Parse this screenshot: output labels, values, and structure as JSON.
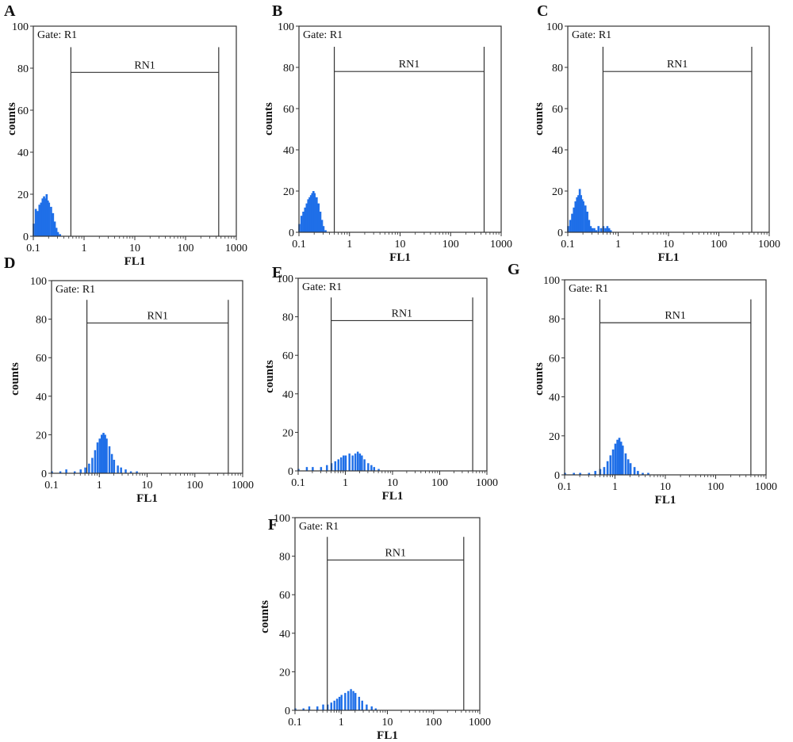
{
  "colors": {
    "histogram": "#1f6fe8",
    "frame": "#333333",
    "marker": "#333333"
  },
  "chart_data": [
    {
      "panel": "A",
      "type": "histogram",
      "title": "",
      "xlabel": "FL1",
      "ylabel": "counts",
      "x_scale": "log",
      "xlim": [
        0.1,
        1000
      ],
      "ylim": [
        0,
        100
      ],
      "x_ticks": [
        "0.1",
        "1",
        "10",
        "100",
        "1000"
      ],
      "y_ticks": [
        "0",
        "20",
        "40",
        "60",
        "80",
        "100"
      ],
      "gate": "Gate: R1",
      "marker": {
        "name": "RN1",
        "x_start": 0.55,
        "x_end": 450,
        "y": 78
      },
      "bins": [
        [
          0.1,
          6
        ],
        [
          0.11,
          13
        ],
        [
          0.12,
          12
        ],
        [
          0.13,
          15
        ],
        [
          0.14,
          16
        ],
        [
          0.15,
          18
        ],
        [
          0.16,
          19
        ],
        [
          0.17,
          18
        ],
        [
          0.18,
          20
        ],
        [
          0.19,
          17
        ],
        [
          0.2,
          16
        ],
        [
          0.22,
          14
        ],
        [
          0.24,
          11
        ],
        [
          0.26,
          7
        ],
        [
          0.28,
          4
        ],
        [
          0.3,
          2
        ],
        [
          0.33,
          1
        ]
      ]
    },
    {
      "panel": "B",
      "type": "histogram",
      "title": "",
      "xlabel": "FL1",
      "ylabel": "counts",
      "x_scale": "log",
      "xlim": [
        0.1,
        1000
      ],
      "ylim": [
        0,
        100
      ],
      "x_ticks": [
        "0.1",
        "1",
        "10",
        "100",
        "1000"
      ],
      "y_ticks": [
        "0",
        "20",
        "40",
        "60",
        "80",
        "100"
      ],
      "gate": "Gate: R1",
      "marker": {
        "name": "RN1",
        "x_start": 0.5,
        "x_end": 460,
        "y": 78
      },
      "bins": [
        [
          0.1,
          4
        ],
        [
          0.11,
          8
        ],
        [
          0.12,
          10
        ],
        [
          0.13,
          12
        ],
        [
          0.14,
          14
        ],
        [
          0.15,
          16
        ],
        [
          0.16,
          17
        ],
        [
          0.17,
          18
        ],
        [
          0.18,
          19
        ],
        [
          0.19,
          20
        ],
        [
          0.2,
          19
        ],
        [
          0.22,
          17
        ],
        [
          0.24,
          14
        ],
        [
          0.26,
          10
        ],
        [
          0.28,
          6
        ],
        [
          0.3,
          3
        ],
        [
          0.33,
          1
        ]
      ]
    },
    {
      "panel": "C",
      "type": "histogram",
      "title": "",
      "xlabel": "FL1",
      "ylabel": "counts",
      "x_scale": "log",
      "xlim": [
        0.1,
        1000
      ],
      "ylim": [
        0,
        100
      ],
      "x_ticks": [
        "0.1",
        "1",
        "10",
        "100",
        "1000"
      ],
      "y_ticks": [
        "0",
        "20",
        "40",
        "60",
        "80",
        "100"
      ],
      "gate": "Gate: R1",
      "marker": {
        "name": "RN1",
        "x_start": 0.5,
        "x_end": 450,
        "y": 78
      },
      "bins": [
        [
          0.1,
          3
        ],
        [
          0.11,
          6
        ],
        [
          0.12,
          9
        ],
        [
          0.13,
          12
        ],
        [
          0.14,
          15
        ],
        [
          0.15,
          17
        ],
        [
          0.16,
          18
        ],
        [
          0.17,
          21
        ],
        [
          0.18,
          18
        ],
        [
          0.19,
          16
        ],
        [
          0.2,
          15
        ],
        [
          0.22,
          13
        ],
        [
          0.24,
          10
        ],
        [
          0.26,
          6
        ],
        [
          0.28,
          3
        ],
        [
          0.3,
          2
        ],
        [
          0.33,
          2
        ],
        [
          0.36,
          1
        ],
        [
          0.4,
          3
        ],
        [
          0.45,
          2
        ],
        [
          0.5,
          3
        ],
        [
          0.55,
          2
        ],
        [
          0.6,
          3
        ],
        [
          0.65,
          2
        ],
        [
          0.7,
          1
        ]
      ]
    },
    {
      "panel": "D",
      "type": "histogram",
      "title": "",
      "xlabel": "FL1",
      "ylabel": "counts",
      "x_scale": "log",
      "xlim": [
        0.1,
        1000
      ],
      "ylim": [
        0,
        100
      ],
      "x_ticks": [
        "0.1",
        "1",
        "10",
        "100",
        "1000"
      ],
      "y_ticks": [
        "0",
        "20",
        "40",
        "60",
        "80",
        "100"
      ],
      "gate": "Gate: R1",
      "marker": {
        "name": "RN1",
        "x_start": 0.55,
        "x_end": 500,
        "y": 78
      },
      "bins": [
        [
          0.1,
          1
        ],
        [
          0.15,
          1
        ],
        [
          0.2,
          2
        ],
        [
          0.3,
          1
        ],
        [
          0.4,
          2
        ],
        [
          0.5,
          3
        ],
        [
          0.6,
          5
        ],
        [
          0.7,
          8
        ],
        [
          0.8,
          12
        ],
        [
          0.9,
          16
        ],
        [
          1.0,
          18
        ],
        [
          1.1,
          20
        ],
        [
          1.2,
          21
        ],
        [
          1.3,
          20
        ],
        [
          1.4,
          18
        ],
        [
          1.6,
          14
        ],
        [
          1.8,
          10
        ],
        [
          2.0,
          7
        ],
        [
          2.4,
          4
        ],
        [
          2.8,
          3
        ],
        [
          3.5,
          2
        ],
        [
          4.5,
          1
        ],
        [
          6.0,
          1
        ]
      ]
    },
    {
      "panel": "E",
      "type": "histogram",
      "title": "",
      "xlabel": "FL1",
      "ylabel": "counts",
      "x_scale": "log",
      "xlim": [
        0.1,
        1000
      ],
      "ylim": [
        0,
        100
      ],
      "x_ticks": [
        "0.1",
        "1",
        "10",
        "100",
        "1000"
      ],
      "y_ticks": [
        "0",
        "20",
        "40",
        "60",
        "80",
        "100"
      ],
      "gate": "Gate: R1",
      "marker": {
        "name": "RN1",
        "x_start": 0.5,
        "x_end": 500,
        "y": 78
      },
      "bins": [
        [
          0.1,
          1
        ],
        [
          0.15,
          2
        ],
        [
          0.2,
          2
        ],
        [
          0.3,
          2
        ],
        [
          0.4,
          3
        ],
        [
          0.5,
          4
        ],
        [
          0.6,
          5
        ],
        [
          0.7,
          6
        ],
        [
          0.8,
          7
        ],
        [
          0.9,
          8
        ],
        [
          1.0,
          8
        ],
        [
          1.2,
          9
        ],
        [
          1.4,
          8
        ],
        [
          1.6,
          9
        ],
        [
          1.8,
          10
        ],
        [
          2.0,
          9
        ],
        [
          2.2,
          8
        ],
        [
          2.5,
          6
        ],
        [
          3.0,
          4
        ],
        [
          3.5,
          3
        ],
        [
          4.0,
          2
        ],
        [
          5.0,
          1
        ]
      ]
    },
    {
      "panel": "G",
      "type": "histogram",
      "title": "",
      "xlabel": "FL1",
      "ylabel": "counts",
      "x_scale": "log",
      "xlim": [
        0.1,
        1000
      ],
      "ylim": [
        0,
        100
      ],
      "x_ticks": [
        "0.1",
        "1",
        "10",
        "100",
        "1000"
      ],
      "y_ticks": [
        "0",
        "20",
        "40",
        "60",
        "80",
        "100"
      ],
      "gate": "Gate: R1",
      "marker": {
        "name": "RN1",
        "x_start": 0.5,
        "x_end": 500,
        "y": 78
      },
      "bins": [
        [
          0.1,
          1
        ],
        [
          0.15,
          1
        ],
        [
          0.2,
          1
        ],
        [
          0.3,
          1
        ],
        [
          0.4,
          2
        ],
        [
          0.5,
          3
        ],
        [
          0.6,
          4
        ],
        [
          0.7,
          7
        ],
        [
          0.8,
          10
        ],
        [
          0.9,
          13
        ],
        [
          1.0,
          16
        ],
        [
          1.1,
          18
        ],
        [
          1.2,
          19
        ],
        [
          1.3,
          17
        ],
        [
          1.4,
          15
        ],
        [
          1.6,
          11
        ],
        [
          1.8,
          8
        ],
        [
          2.0,
          6
        ],
        [
          2.4,
          4
        ],
        [
          2.8,
          2
        ],
        [
          3.5,
          1
        ],
        [
          4.5,
          1
        ]
      ]
    },
    {
      "panel": "F",
      "type": "histogram",
      "title": "",
      "xlabel": "FL1",
      "ylabel": "counts",
      "x_scale": "log",
      "xlim": [
        0.1,
        1000
      ],
      "ylim": [
        0,
        100
      ],
      "x_ticks": [
        "0.1",
        "1",
        "10",
        "100",
        "1000"
      ],
      "y_ticks": [
        "0",
        "20",
        "40",
        "60",
        "80",
        "100"
      ],
      "gate": "Gate: R1",
      "marker": {
        "name": "RN1",
        "x_start": 0.5,
        "x_end": 450,
        "y": 78
      },
      "bins": [
        [
          0.1,
          1
        ],
        [
          0.15,
          1
        ],
        [
          0.2,
          2
        ],
        [
          0.3,
          2
        ],
        [
          0.4,
          3
        ],
        [
          0.5,
          3
        ],
        [
          0.6,
          4
        ],
        [
          0.7,
          5
        ],
        [
          0.8,
          6
        ],
        [
          0.9,
          7
        ],
        [
          1.0,
          8
        ],
        [
          1.2,
          9
        ],
        [
          1.4,
          10
        ],
        [
          1.6,
          11
        ],
        [
          1.8,
          10
        ],
        [
          2.0,
          9
        ],
        [
          2.4,
          7
        ],
        [
          2.8,
          5
        ],
        [
          3.5,
          3
        ],
        [
          4.5,
          2
        ],
        [
          5.5,
          1
        ]
      ]
    }
  ]
}
